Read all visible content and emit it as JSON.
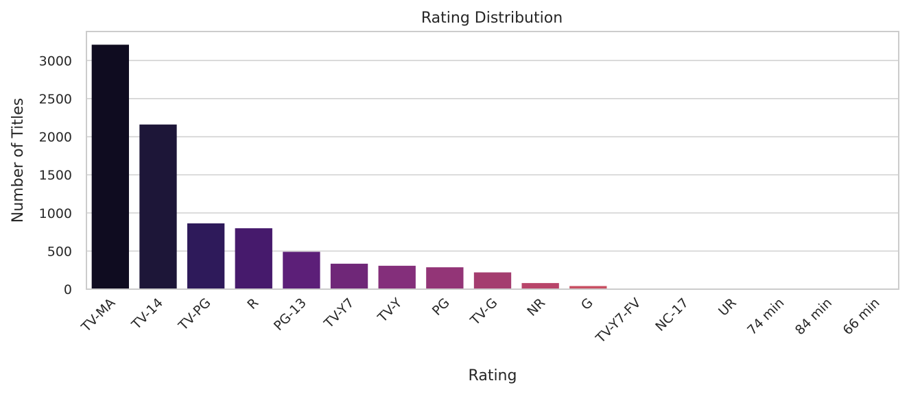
{
  "chart_data": {
    "type": "bar",
    "title": "Rating Distribution",
    "xlabel": "Rating",
    "ylabel": "Number of Titles",
    "categories": [
      "TV-MA",
      "TV-14",
      "TV-PG",
      "R",
      "PG-13",
      "TV-Y7",
      "TV-Y",
      "PG",
      "TV-G",
      "NR",
      "G",
      "TV-Y7-FV",
      "NC-17",
      "UR",
      "74 min",
      "84 min",
      "66 min"
    ],
    "values": [
      3207,
      2160,
      863,
      799,
      490,
      334,
      307,
      287,
      220,
      80,
      41,
      6,
      3,
      3,
      1,
      1,
      1
    ],
    "ylim": [
      0,
      3380
    ],
    "yticks": [
      0,
      500,
      1000,
      1500,
      2000,
      2500,
      3000
    ],
    "grid": true,
    "colors": [
      "#0f0c20",
      "#1d1638",
      "#2e1a5a",
      "#461a6c",
      "#5c1f78",
      "#6f2778",
      "#842f7b",
      "#933577",
      "#a43d6f",
      "#b8456a",
      "#c85063",
      "#d45b5c",
      "#de6955",
      "#e47753",
      "#e98a56",
      "#ed9a5f",
      "#f0ab6c"
    ],
    "frame_color": "#cccccc",
    "grid_color": "#d0d0d0"
  }
}
